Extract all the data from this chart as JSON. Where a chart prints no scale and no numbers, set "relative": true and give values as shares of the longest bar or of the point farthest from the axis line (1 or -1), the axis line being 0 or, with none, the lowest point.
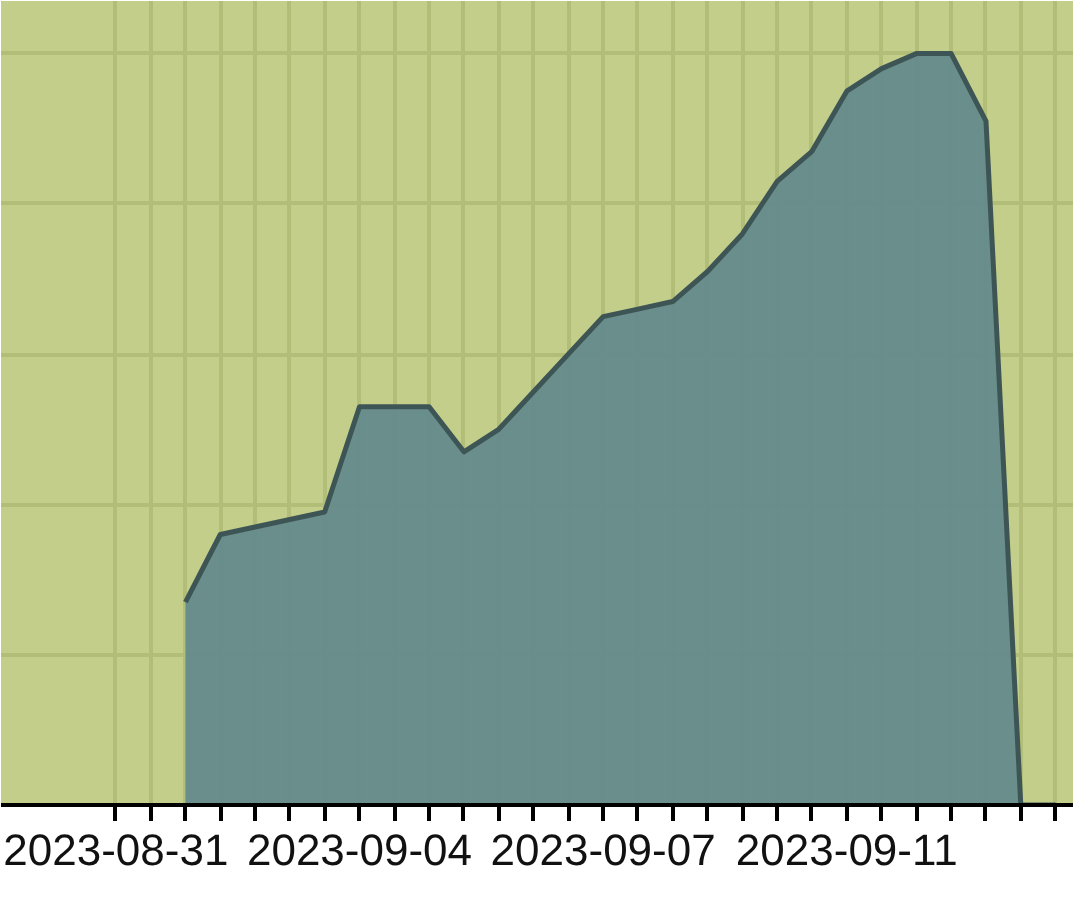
{
  "chart_data": {
    "type": "area",
    "relative": true,
    "categories": [
      "2023-08-31",
      null,
      null,
      null,
      null,
      null,
      null,
      "2023-09-04",
      null,
      null,
      null,
      null,
      null,
      null,
      "2023-09-07",
      null,
      null,
      null,
      null,
      null,
      null,
      "2023-09-11",
      null,
      null,
      null,
      null,
      null,
      null
    ],
    "values": [
      null,
      null,
      0.27,
      0.36,
      0.37,
      0.38,
      0.39,
      0.53,
      0.53,
      0.53,
      0.47,
      0.5,
      0.55,
      0.6,
      0.65,
      0.66,
      0.67,
      0.71,
      0.76,
      0.83,
      0.87,
      0.95,
      0.98,
      1.0,
      1.0,
      0.91,
      0,
      0
    ],
    "color": "#648a8b",
    "grid": true
  }
}
